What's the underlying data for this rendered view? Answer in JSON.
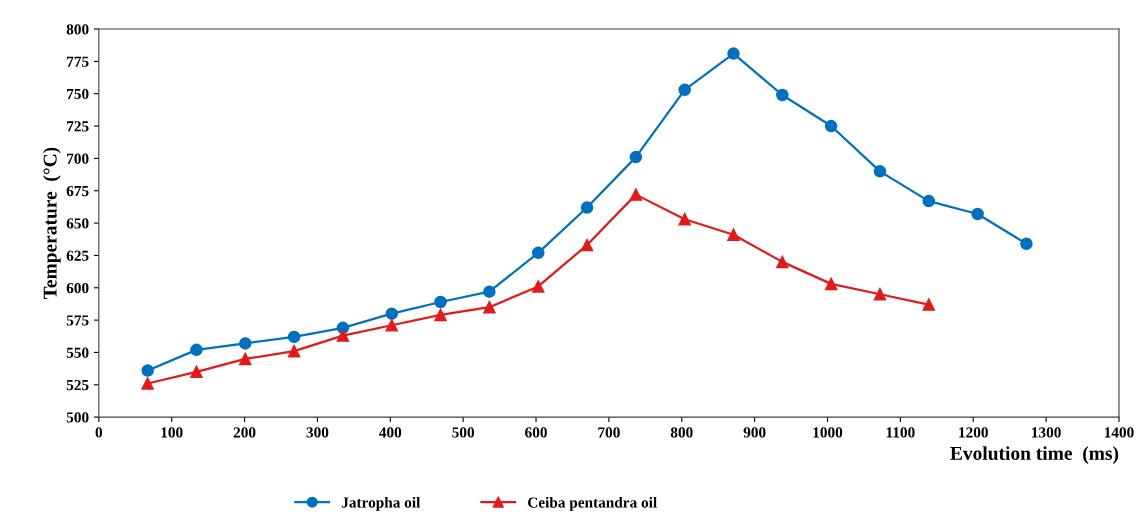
{
  "chart_data": {
    "type": "line",
    "xlabel": "Evolution time  (ms)",
    "ylabel": "Temperature  (°C)",
    "x": [
      67,
      134,
      201,
      268,
      335,
      402,
      469,
      536,
      603,
      670,
      737,
      804,
      871,
      938,
      1005,
      1072,
      1139,
      1206,
      1273
    ],
    "series": [
      {
        "name": "Jatropha oil",
        "color": "#0070c0",
        "marker": "circle",
        "values": [
          536,
          552,
          557,
          562,
          569,
          580,
          589,
          597,
          627,
          662,
          701,
          753,
          781,
          749,
          725,
          690,
          667,
          657,
          634
        ]
      },
      {
        "name": "Ceiba pentandra oil",
        "color": "#e31a1c",
        "marker": "triangle",
        "values": [
          526,
          535,
          545,
          551,
          563,
          571,
          579,
          585,
          601,
          633,
          672,
          653,
          641,
          620,
          603,
          595,
          587,
          null,
          null
        ]
      }
    ],
    "xlim": [
      0,
      1400
    ],
    "xticks": [
      0,
      100,
      200,
      300,
      400,
      500,
      600,
      700,
      800,
      900,
      1000,
      1100,
      1200,
      1300,
      1400
    ],
    "ylim": [
      500,
      800
    ],
    "yticks": [
      500,
      525,
      550,
      575,
      600,
      625,
      650,
      675,
      700,
      725,
      750,
      775,
      800
    ],
    "grid": false,
    "legend": "bottom",
    "line_style": "solid"
  }
}
